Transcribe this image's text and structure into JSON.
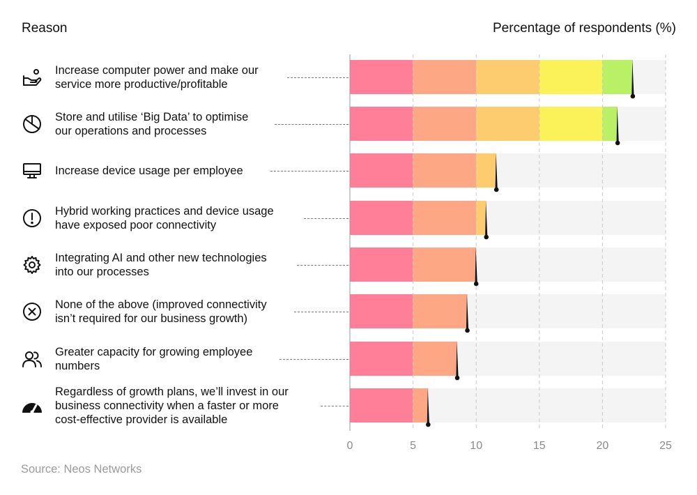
{
  "header": {
    "left_label": "Reason",
    "right_label": "Percentage of respondents (%)"
  },
  "source": "Source: Neos Networks",
  "colors": {
    "band_0_5": "#ff7f98",
    "band_5_10": "#fda784",
    "band_10_15": "#fdcc6f",
    "band_15_20": "#fbf25a",
    "band_20_25": "#b9f065",
    "track": "#f4f4f4",
    "marker": "#111111"
  },
  "chart_data": {
    "type": "bar",
    "orientation": "horizontal",
    "xlabel": "Percentage of respondents (%)",
    "ylabel": "Reason",
    "xlim": [
      0,
      25
    ],
    "xticks": [
      0,
      5,
      10,
      15,
      20,
      25
    ],
    "grid": "vertical dashed",
    "categories": [
      {
        "label": "Increase computer power and make our\nservice more productive/profitable",
        "icon": "hand-with-person-icon"
      },
      {
        "label": "Store and utilise ‘Big Data’ to optimise\nour operations and processes",
        "icon": "pie-chart-icon"
      },
      {
        "label": "Increase device usage per employee",
        "icon": "monitor-icon"
      },
      {
        "label": "Hybrid working practices and device usage\nhave exposed poor connectivity",
        "icon": "alert-circle-icon"
      },
      {
        "label": "Integrating AI and other new technologies\ninto our processes",
        "icon": "gear-icon"
      },
      {
        "label": "None of the above (improved connectivity\nisn’t required for our business growth)",
        "icon": "x-circle-icon"
      },
      {
        "label": "Greater capacity for growing employee\nnumbers",
        "icon": "users-icon"
      },
      {
        "label": "Regardless of growth plans, we’ll invest in our\nbusiness connectivity when a faster or more\ncost-effective provider is available",
        "icon": "speedometer-icon"
      }
    ],
    "values": [
      22.4,
      21.2,
      11.6,
      10.8,
      10.0,
      9.3,
      8.5,
      6.2
    ]
  }
}
